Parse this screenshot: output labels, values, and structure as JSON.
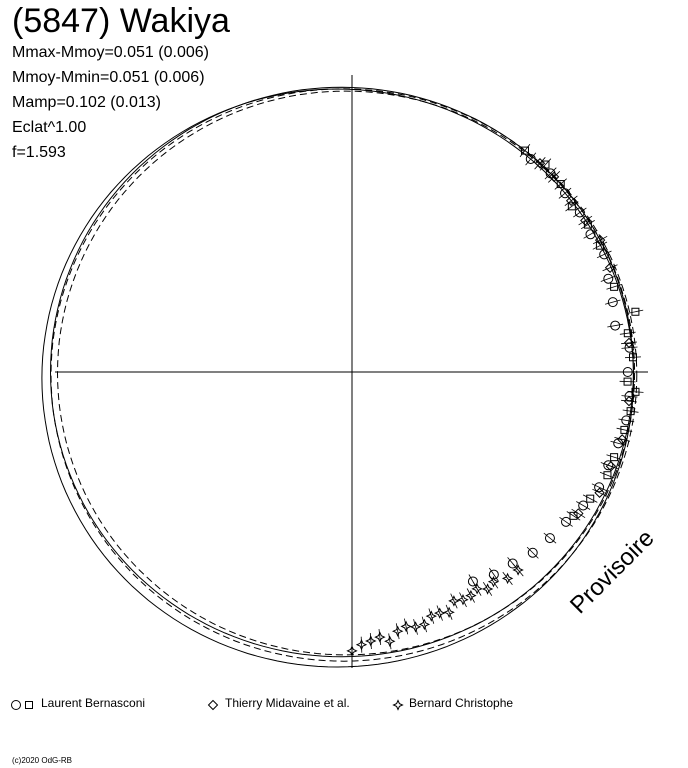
{
  "header": {
    "title": "(5847) Wakiya",
    "params": [
      "Mmax-Mmoy=0.051 (0.006)",
      "Mmoy-Mmin=0.051 (0.006)",
      "Mamp=0.102 (0.013)",
      "Eclat^1.00",
      "f=1.593"
    ]
  },
  "watermark": "Provisoire",
  "copyright": "(c)2020 OdG-RB",
  "legend": {
    "entries": [
      {
        "label": "Laurent Bernasconi",
        "symbols": [
          "circle",
          "square"
        ]
      },
      {
        "label": "Thierry Midavaine et al.",
        "symbols": [
          "diamond"
        ]
      },
      {
        "label": "Bernard Christophe",
        "symbols": [
          "star"
        ]
      }
    ]
  },
  "chart_data": {
    "type": "scatter",
    "projection": "polar",
    "title": "(5847) Wakiya",
    "grid": false,
    "axes": "crosshair",
    "curves": [
      {
        "style": "solid",
        "note": "lightcurve fit"
      },
      {
        "style": "solid",
        "note": "outer bound"
      },
      {
        "style": "dashed",
        "note": "uncertainty"
      },
      {
        "style": "dashed",
        "note": "uncertainty"
      }
    ],
    "series": [
      {
        "name": "Laurent Bernasconi",
        "marker": "circle",
        "points": [
          [
            -50,
            0.99
          ],
          [
            -45,
            1.0
          ],
          [
            -40,
            0.99
          ],
          [
            -35,
            0.99
          ],
          [
            -30,
            0.98
          ],
          [
            -25,
            0.99
          ],
          [
            -20,
            0.97
          ],
          [
            -15,
            0.96
          ],
          [
            -10,
            0.95
          ],
          [
            -5,
            0.99
          ],
          [
            0,
            0.98
          ],
          [
            5,
            0.99
          ],
          [
            10,
            0.99
          ],
          [
            15,
            0.98
          ],
          [
            20,
            0.97
          ],
          [
            25,
            0.97
          ],
          [
            30,
            0.95
          ],
          [
            35,
            0.93
          ],
          [
            40,
            0.92
          ],
          [
            45,
            0.91
          ],
          [
            50,
            0.89
          ],
          [
            55,
            0.88
          ],
          [
            60,
            0.86
          ]
        ]
      },
      {
        "name": "Laurent Bernasconi",
        "marker": "square",
        "points": [
          [
            -52,
            1.0
          ],
          [
            -47,
            1.01
          ],
          [
            -42,
            1.0
          ],
          [
            -37,
            0.98
          ],
          [
            -32,
            0.99
          ],
          [
            -27,
            0.99
          ],
          [
            -18,
            0.98
          ],
          [
            -12,
            1.03
          ],
          [
            -8,
            0.99
          ],
          [
            -3,
            1.0
          ],
          [
            2,
            0.98
          ],
          [
            4,
            1.01
          ],
          [
            8,
            1.0
          ],
          [
            12,
            0.99
          ],
          [
            18,
            0.98
          ],
          [
            22,
            0.98
          ],
          [
            28,
            0.96
          ],
          [
            33,
            0.94
          ]
        ]
      },
      {
        "name": "Thierry Midavaine et al.",
        "marker": "diamond",
        "points": [
          [
            -48,
            1.0
          ],
          [
            -44,
            1.0
          ],
          [
            -38,
            0.99
          ],
          [
            -33,
            0.99
          ],
          [
            -28,
            1.0
          ],
          [
            -22,
            0.99
          ],
          [
            -6,
            0.99
          ],
          [
            6,
            0.99
          ],
          [
            14,
            0.99
          ],
          [
            20,
            0.98
          ],
          [
            26,
            0.98
          ],
          [
            32,
            0.95
          ]
        ]
      },
      {
        "name": "Bernard Christophe",
        "marker": "star",
        "points": [
          [
            50,
            0.92
          ],
          [
            53,
            0.92
          ],
          [
            56,
            0.9
          ],
          [
            58,
            0.91
          ],
          [
            60,
            0.89
          ],
          [
            62,
            0.9
          ],
          [
            64,
            0.9
          ],
          [
            66,
            0.89
          ],
          [
            68,
            0.92
          ],
          [
            70,
            0.91
          ],
          [
            72,
            0.91
          ],
          [
            74,
            0.93
          ],
          [
            76,
            0.93
          ],
          [
            78,
            0.92
          ],
          [
            80,
            0.93
          ],
          [
            82,
            0.96
          ],
          [
            84,
            0.94
          ],
          [
            86,
            0.95
          ],
          [
            88,
            0.96
          ],
          [
            90,
            0.98
          ]
        ]
      }
    ]
  }
}
